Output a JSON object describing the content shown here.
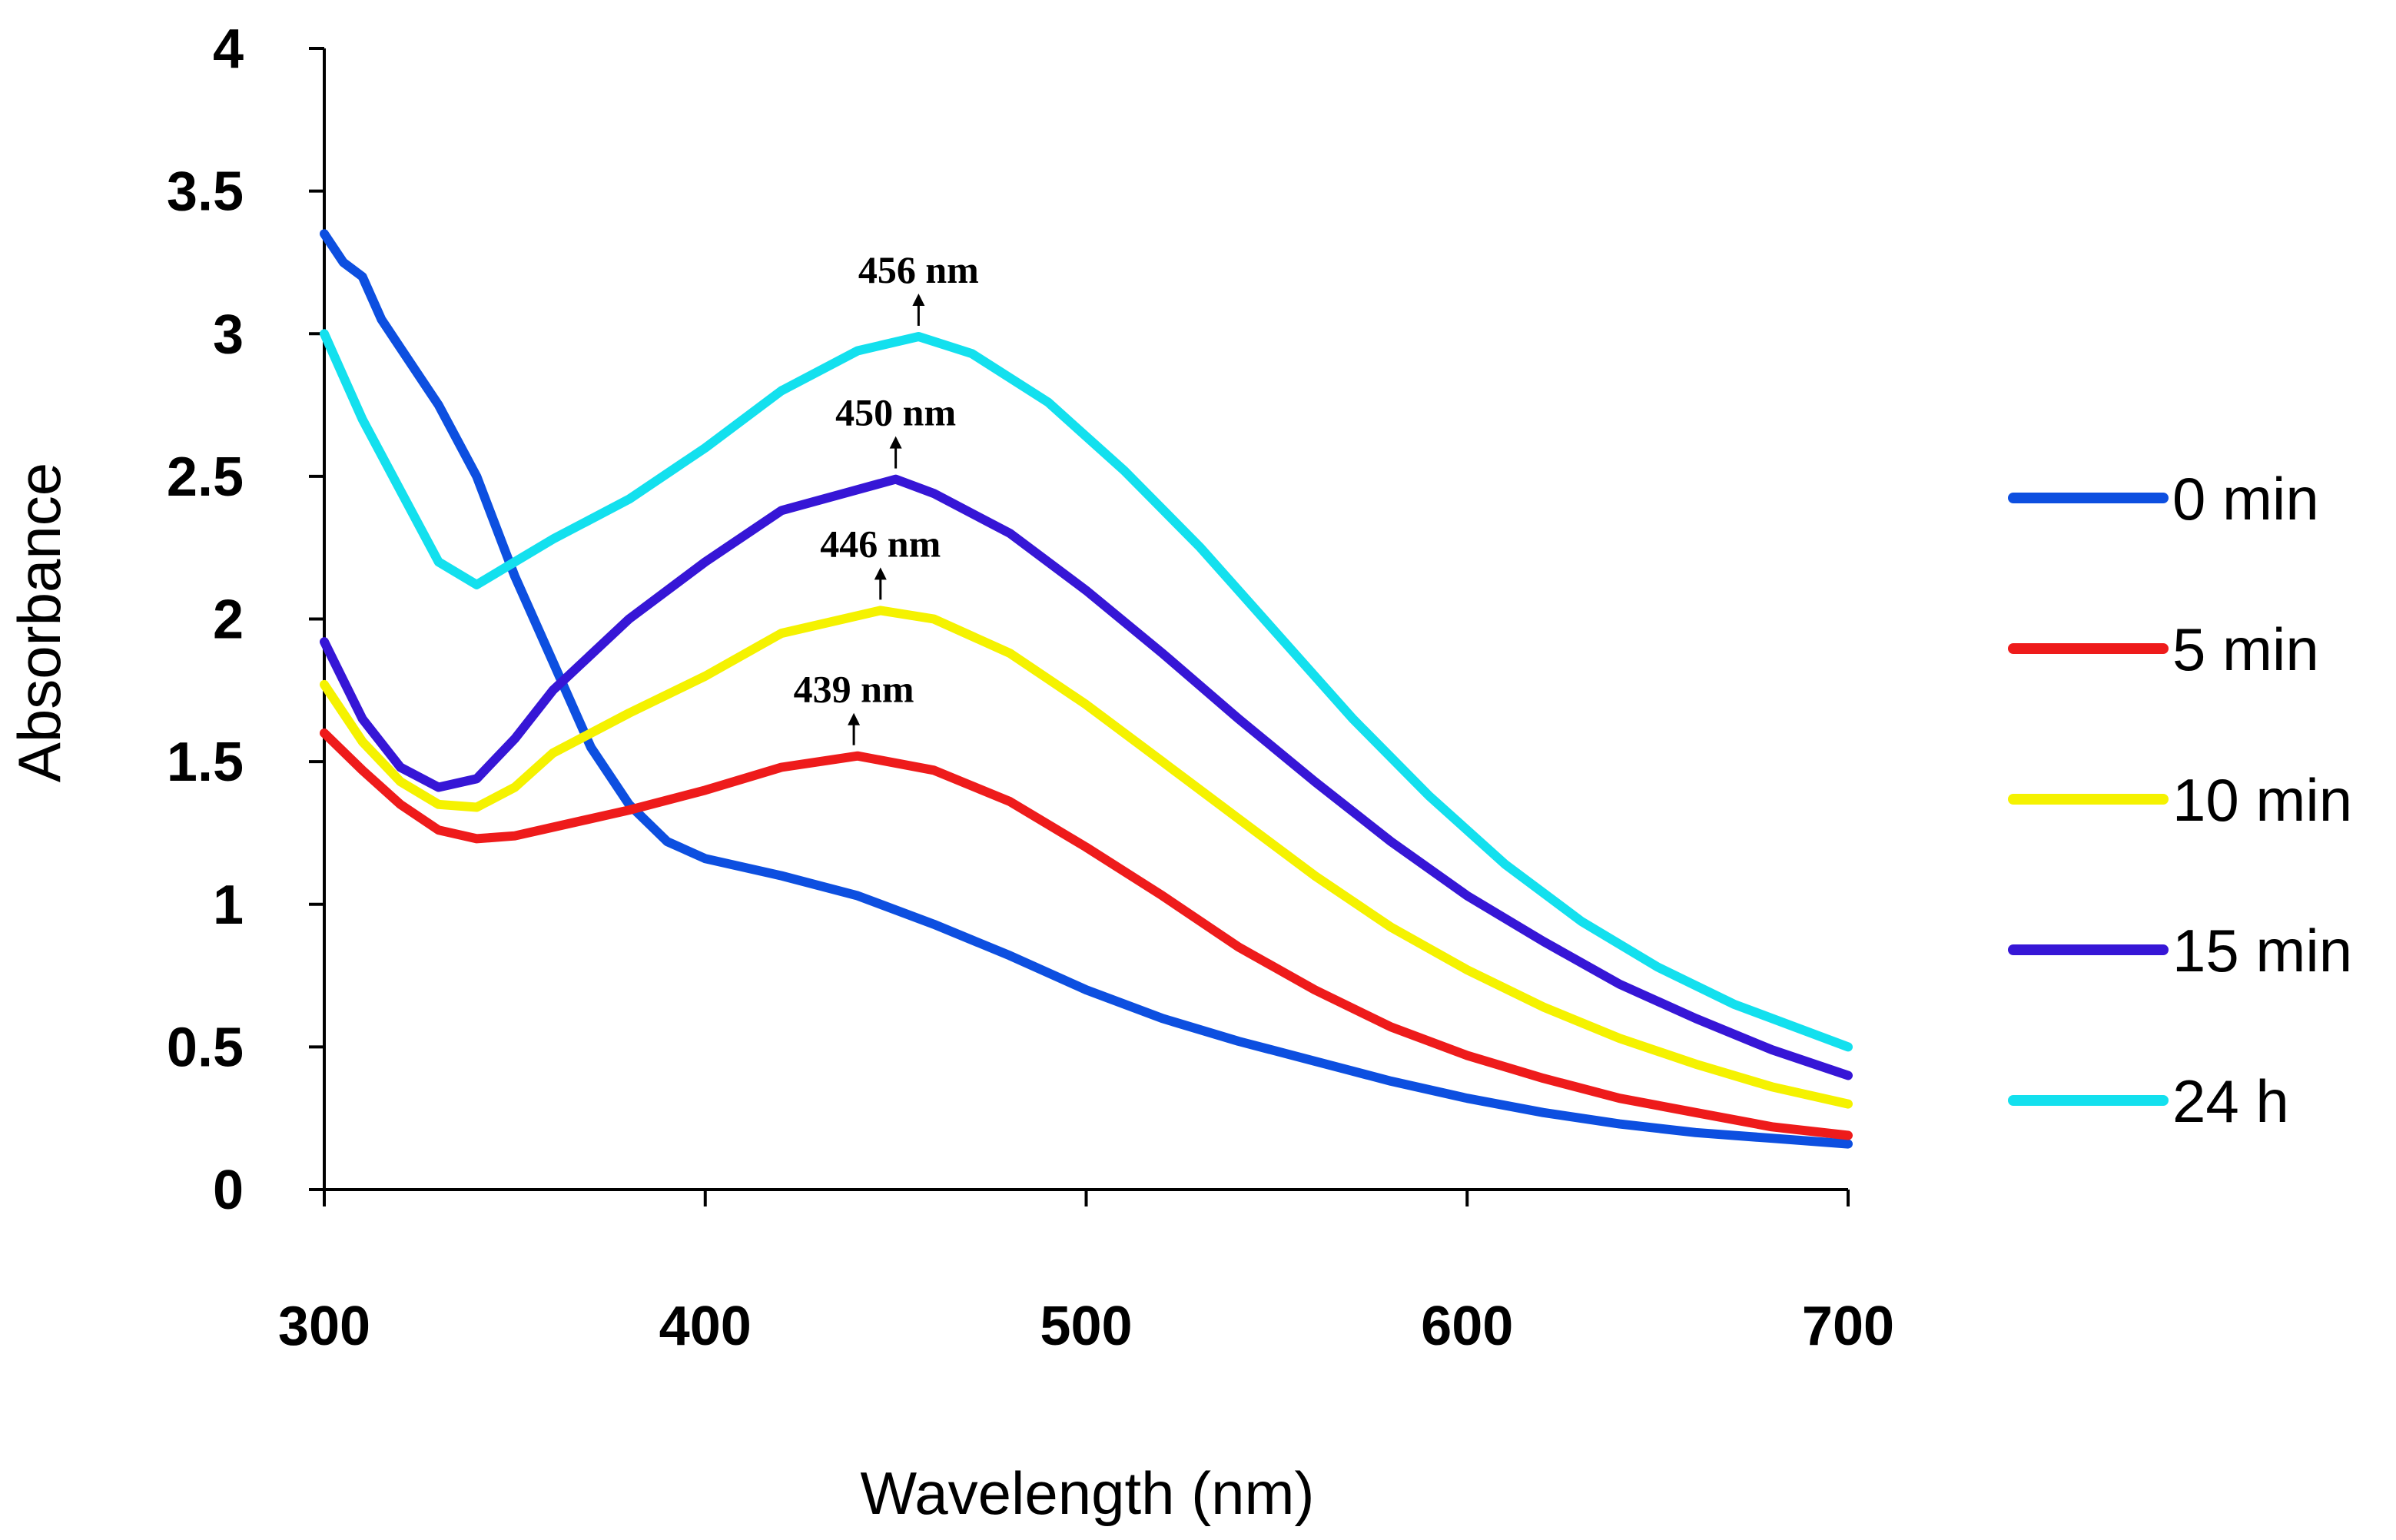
{
  "chart_data": {
    "type": "line",
    "title": "",
    "xlabel": "Wavelength (nm)",
    "ylabel": "Absorbance",
    "xlim": [
      300,
      700
    ],
    "ylim": [
      0,
      4
    ],
    "xticks": [
      300,
      400,
      500,
      600,
      700
    ],
    "xtick_labels": [
      "300",
      "400",
      "500",
      "600",
      "700"
    ],
    "yticks": [
      0,
      0.5,
      1,
      1.5,
      2,
      2.5,
      3,
      3.5,
      4
    ],
    "ytick_labels": [
      "0",
      "0.5",
      "1",
      "1.5",
      "2",
      "2.5",
      "3",
      "3.5",
      "4"
    ],
    "grid": false,
    "legend_position": "right",
    "series": [
      {
        "name": "0 min",
        "color": "#0d4fe0",
        "x": [
          300,
          305,
          310,
          315,
          320,
          330,
          340,
          350,
          360,
          370,
          380,
          390,
          400,
          420,
          440,
          460,
          480,
          500,
          520,
          540,
          560,
          580,
          600,
          620,
          640,
          660,
          680,
          700
        ],
        "y": [
          3.35,
          3.25,
          3.2,
          3.05,
          2.95,
          2.75,
          2.5,
          2.15,
          1.85,
          1.55,
          1.35,
          1.22,
          1.16,
          1.1,
          1.03,
          0.93,
          0.82,
          0.7,
          0.6,
          0.52,
          0.45,
          0.38,
          0.32,
          0.27,
          0.23,
          0.2,
          0.18,
          0.16
        ]
      },
      {
        "name": "5 min",
        "color": "#ee1b1b",
        "x": [
          300,
          310,
          320,
          330,
          340,
          350,
          360,
          380,
          400,
          420,
          440,
          460,
          480,
          500,
          520,
          540,
          560,
          580,
          600,
          620,
          640,
          660,
          680,
          700
        ],
        "y": [
          1.6,
          1.47,
          1.35,
          1.26,
          1.23,
          1.24,
          1.27,
          1.33,
          1.4,
          1.48,
          1.52,
          1.47,
          1.36,
          1.2,
          1.03,
          0.85,
          0.7,
          0.57,
          0.47,
          0.39,
          0.32,
          0.27,
          0.22,
          0.19
        ]
      },
      {
        "name": "10 min",
        "color": "#f5f200",
        "x": [
          300,
          310,
          320,
          330,
          340,
          350,
          360,
          380,
          400,
          420,
          446,
          460,
          480,
          500,
          520,
          540,
          560,
          580,
          600,
          620,
          640,
          660,
          680,
          700
        ],
        "y": [
          1.77,
          1.57,
          1.43,
          1.35,
          1.34,
          1.41,
          1.53,
          1.67,
          1.8,
          1.95,
          2.03,
          2.0,
          1.88,
          1.7,
          1.5,
          1.3,
          1.1,
          0.92,
          0.77,
          0.64,
          0.53,
          0.44,
          0.36,
          0.3
        ]
      },
      {
        "name": "15 min",
        "color": "#3616d6",
        "x": [
          300,
          310,
          320,
          330,
          340,
          350,
          360,
          380,
          400,
          420,
          450,
          460,
          480,
          500,
          520,
          540,
          560,
          580,
          600,
          620,
          640,
          660,
          680,
          700
        ],
        "y": [
          1.92,
          1.65,
          1.48,
          1.41,
          1.44,
          1.58,
          1.75,
          2.0,
          2.2,
          2.38,
          2.49,
          2.44,
          2.3,
          2.1,
          1.88,
          1.65,
          1.43,
          1.22,
          1.03,
          0.87,
          0.72,
          0.6,
          0.49,
          0.4
        ]
      },
      {
        "name": "24 h",
        "color": "#13e0ee",
        "x": [
          300,
          310,
          320,
          330,
          340,
          350,
          360,
          380,
          400,
          420,
          440,
          456,
          470,
          490,
          510,
          530,
          550,
          570,
          590,
          610,
          630,
          650,
          670,
          700
        ],
        "y": [
          3.0,
          2.7,
          2.45,
          2.2,
          2.12,
          2.2,
          2.28,
          2.42,
          2.6,
          2.8,
          2.94,
          2.99,
          2.93,
          2.76,
          2.52,
          2.25,
          1.95,
          1.65,
          1.38,
          1.14,
          0.94,
          0.78,
          0.65,
          0.5
        ]
      }
    ],
    "annotations": [
      {
        "text": "456 nm",
        "x": 456,
        "y": 2.99
      },
      {
        "text": "450 nm",
        "x": 450,
        "y": 2.49
      },
      {
        "text": "446 nm",
        "x": 446,
        "y": 2.03
      },
      {
        "text": "439 nm",
        "x": 439,
        "y": 1.52
      }
    ]
  }
}
